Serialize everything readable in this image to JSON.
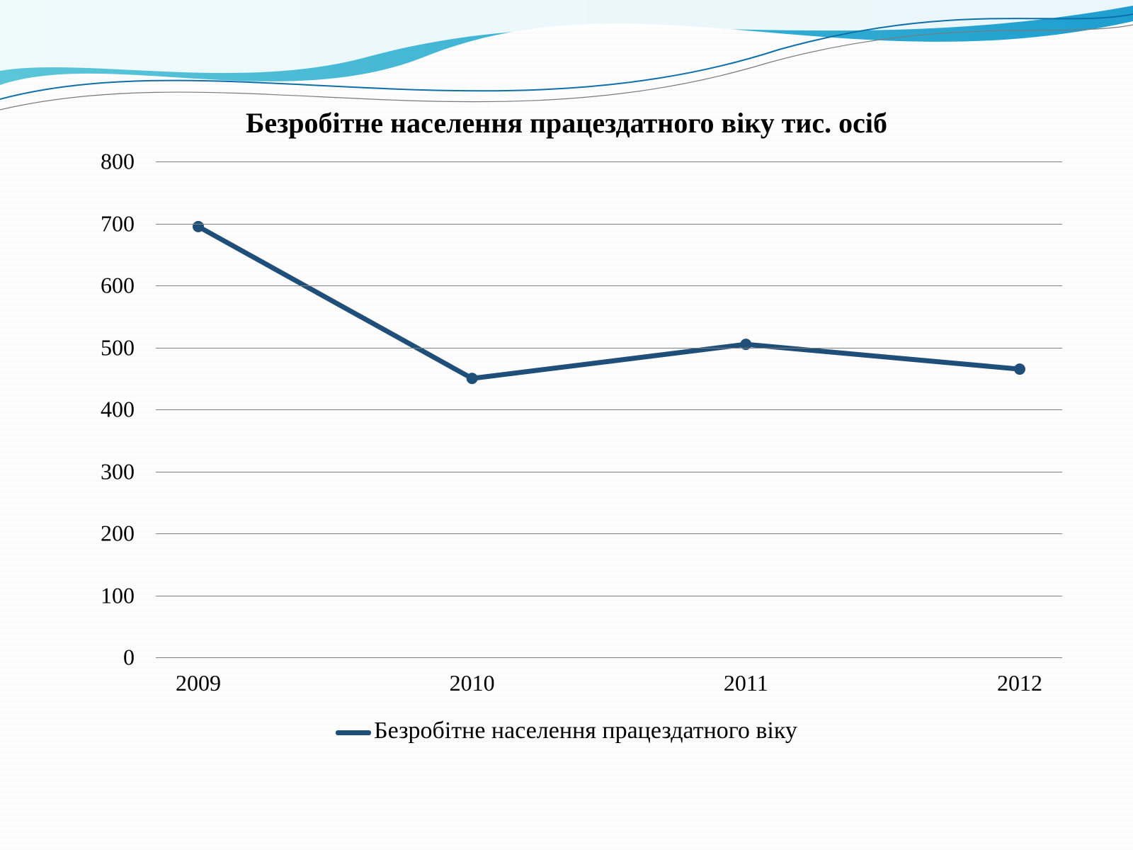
{
  "chart": {
    "type": "line",
    "title": "Безробітне населення працездатного віку тис. осіб",
    "title_fontsize": 40,
    "categories": [
      "2009",
      "2010",
      "2011",
      "2012"
    ],
    "values": [
      695,
      450,
      505,
      465
    ],
    "ylim": [
      0,
      800
    ],
    "ytick_step": 100,
    "yticks": [
      0,
      100,
      200,
      300,
      400,
      500,
      600,
      700,
      800
    ],
    "axis_fontsize": 32,
    "line_color": "#1f4e79",
    "line_width": 7,
    "marker_color": "#1f4e79",
    "marker_radius": 8,
    "grid_color": "#7f7f7f",
    "grid_width": 1,
    "background_color": "#fdfdfd",
    "legend_label": "Безробітне населення працездатного віку",
    "legend_fontsize": 34
  },
  "waves": {
    "band1_from": "#5bc6d8",
    "band1_to": "#1e9fcf",
    "band2": "#ffffff",
    "thin1": "#0f6fa8",
    "thin2": "#7a7a7a"
  }
}
